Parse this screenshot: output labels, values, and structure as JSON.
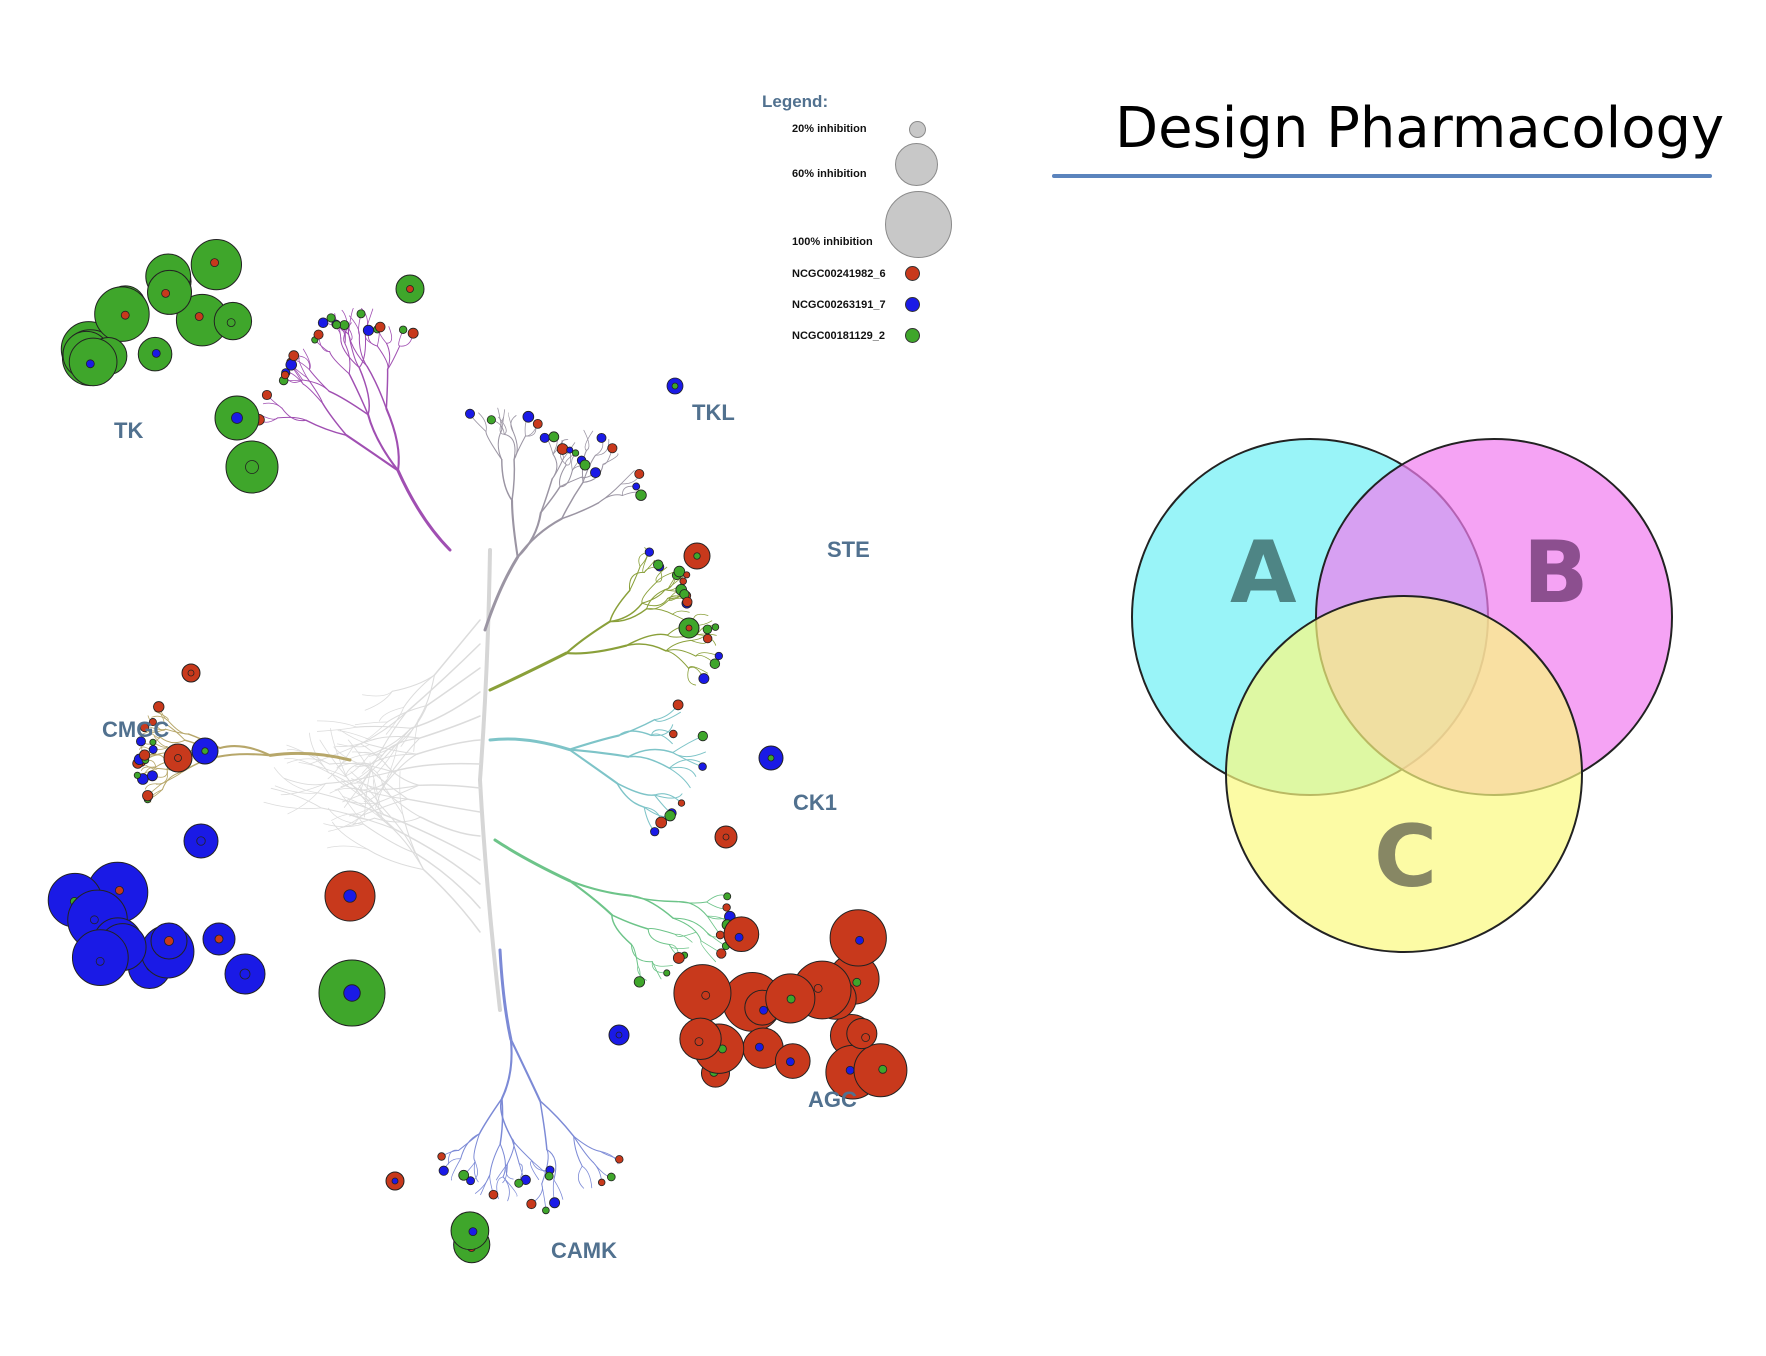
{
  "slide_title": "Design Pharmacology",
  "legend": {
    "heading": "Legend:",
    "size_entries": [
      {
        "label": "20% inhibition",
        "inhibition": 20
      },
      {
        "label": "60% inhibition",
        "inhibition": 60
      },
      {
        "label": "100% inhibition",
        "inhibition": 100
      }
    ],
    "compounds": [
      {
        "label": "NCGC00241982_6",
        "color": "#c8391c"
      },
      {
        "label": "NCGC00263191_7",
        "color": "#1a1ae6"
      },
      {
        "label": "NCGC00181129_2",
        "color": "#3fa62b"
      }
    ]
  },
  "kinase_groups": [
    {
      "name": "TK",
      "branch_color": "#a04fb2"
    },
    {
      "name": "TKL",
      "branch_color": "#9b95a3"
    },
    {
      "name": "STE",
      "branch_color": "#8aa03a"
    },
    {
      "name": "CK1",
      "branch_color": "#7ec4c8"
    },
    {
      "name": "AGC",
      "branch_color": "#6dc489"
    },
    {
      "name": "CAMK",
      "branch_color": "#7c8ad6"
    },
    {
      "name": "CMGC",
      "branch_color": "#b7a76a"
    }
  ],
  "venn": {
    "sets": [
      {
        "label": "A",
        "fill": "#6ef0f5",
        "letter_color": "#4e8585"
      },
      {
        "label": "B",
        "fill": "#f17cf0",
        "letter_color": "#8c4f8f"
      },
      {
        "label": "C",
        "fill": "#fbf97f",
        "letter_color": "#878764"
      }
    ]
  }
}
